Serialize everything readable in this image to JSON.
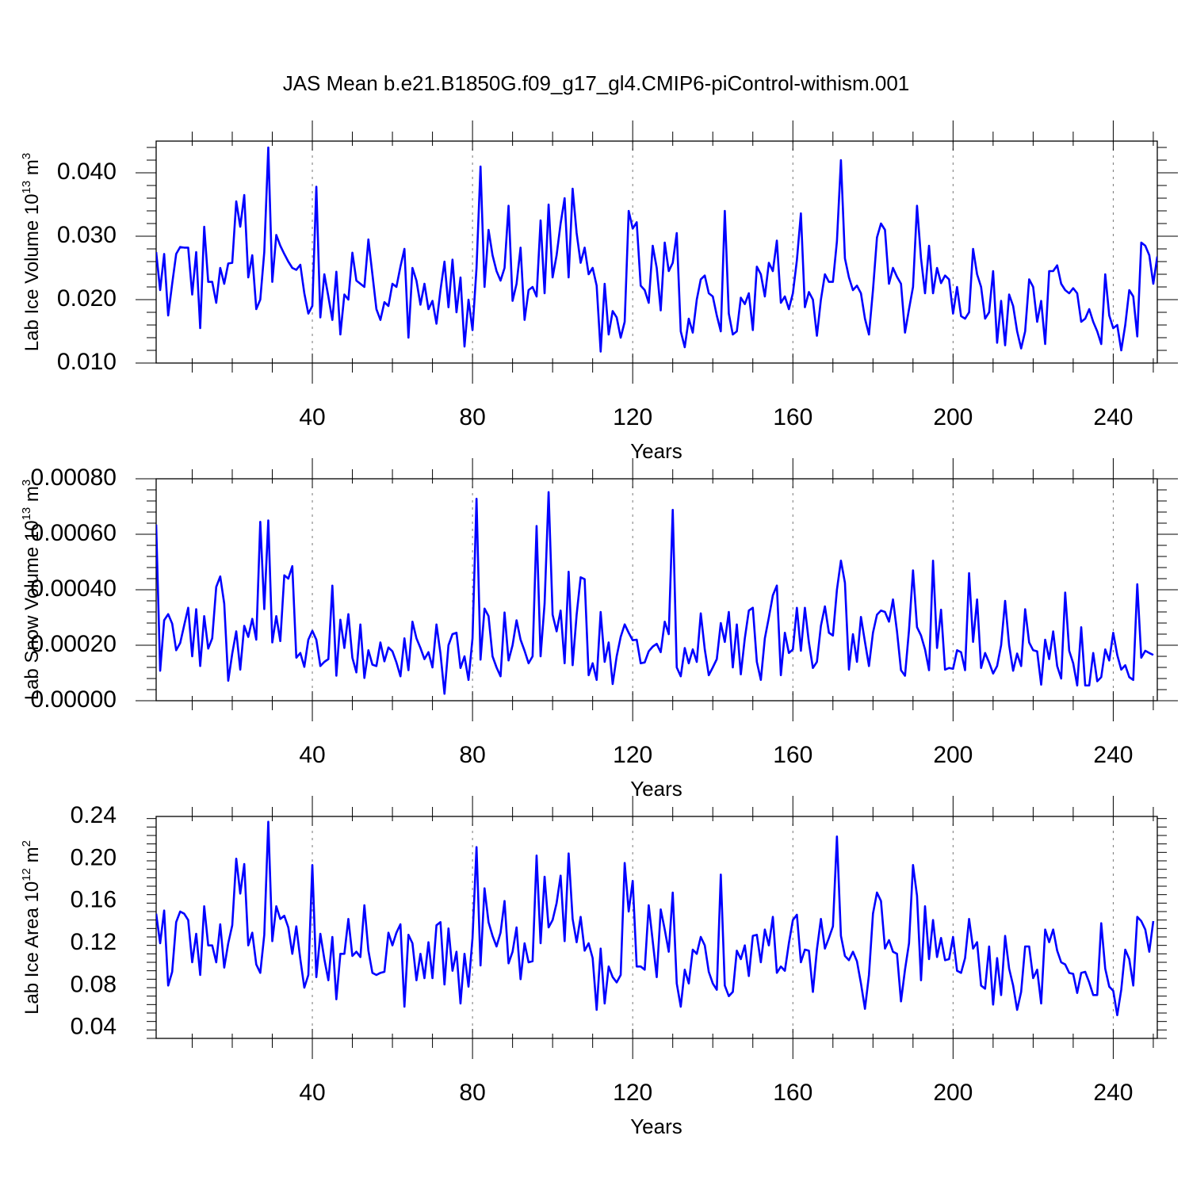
{
  "title": "JAS Mean b.e21.B1850G.f09_g17_gl4.CMIP6-piControl-withism.001",
  "colors": {
    "line": "#0000ff",
    "axis": "#000000",
    "grid": "#777777"
  },
  "chart_data": [
    {
      "type": "line",
      "ylabel": "Lab Ice Volume 10",
      "ylabel_exp": "13",
      "ylabel_unit": " m",
      "ylabel_unit_exp": "3",
      "xlabel": "Years",
      "xlim": [
        1,
        251
      ],
      "ylim": [
        0.01,
        0.045
      ],
      "yticks": [
        0.01,
        0.02,
        0.03,
        0.04
      ],
      "ytick_labels": [
        "0.010",
        "0.020",
        "0.030",
        "0.040"
      ],
      "xticks": [
        40,
        80,
        120,
        160,
        200,
        240
      ],
      "xtick_labels": [
        "40",
        "80",
        "120",
        "160",
        "200",
        "240"
      ],
      "series": [
        {
          "x_start": 1,
          "x_step": 1,
          "values": [
            0.0275,
            0.0215,
            0.0272,
            0.0175,
            0.0225,
            0.0272,
            0.0283,
            0.0282,
            0.0282,
            0.0208,
            0.0275,
            0.0155,
            0.0315,
            0.0228,
            0.0228,
            0.0195,
            0.025,
            0.0225,
            0.0257,
            0.0258,
            0.0355,
            0.0315,
            0.0365,
            0.0235,
            0.027,
            0.0185,
            0.02,
            0.0275,
            0.044,
            0.0228,
            0.0302,
            0.0285,
            0.0272,
            0.026,
            0.025,
            0.0247,
            0.0255,
            0.021,
            0.0178,
            0.019,
            0.0378,
            0.0172,
            0.024,
            0.0205,
            0.0168,
            0.0244,
            0.0145,
            0.0208,
            0.02,
            0.0274,
            0.023,
            0.0225,
            0.022,
            0.0295,
            0.024,
            0.0185,
            0.0168,
            0.0196,
            0.019,
            0.0225,
            0.022,
            0.0252,
            0.028,
            0.014,
            0.025,
            0.023,
            0.0192,
            0.0225,
            0.0185,
            0.0198,
            0.0162,
            0.0215,
            0.026,
            0.0188,
            0.0263,
            0.018,
            0.0235,
            0.0126,
            0.02,
            0.0152,
            0.025,
            0.041,
            0.022,
            0.031,
            0.027,
            0.0245,
            0.023,
            0.025,
            0.0348,
            0.0198,
            0.0225,
            0.0282,
            0.0168,
            0.0215,
            0.022,
            0.0205,
            0.0325,
            0.021,
            0.035,
            0.0235,
            0.027,
            0.032,
            0.036,
            0.0235,
            0.0375,
            0.0305,
            0.0258,
            0.0282,
            0.024,
            0.025,
            0.0222,
            0.0118,
            0.0225,
            0.0145,
            0.0182,
            0.0172,
            0.014,
            0.0165,
            0.034,
            0.0312,
            0.0322,
            0.0222,
            0.0215,
            0.0195,
            0.0285,
            0.025,
            0.0183,
            0.029,
            0.0245,
            0.0258,
            0.0305,
            0.015,
            0.0125,
            0.017,
            0.0148,
            0.02,
            0.0232,
            0.0238,
            0.021,
            0.0205,
            0.0175,
            0.015,
            0.034,
            0.0178,
            0.0145,
            0.015,
            0.0203,
            0.0193,
            0.021,
            0.0152,
            0.0252,
            0.024,
            0.0205,
            0.0258,
            0.0245,
            0.0293,
            0.0195,
            0.0205,
            0.0185,
            0.021,
            0.0262,
            0.0336,
            0.0188,
            0.0212,
            0.02,
            0.0143,
            0.02,
            0.024,
            0.0228,
            0.0228,
            0.0292,
            0.042,
            0.0265,
            0.0235,
            0.0215,
            0.0222,
            0.021,
            0.017,
            0.0145,
            0.0215,
            0.0298,
            0.032,
            0.031,
            0.0225,
            0.025,
            0.0236,
            0.0225,
            0.0148,
            0.0185,
            0.022,
            0.0348,
            0.0265,
            0.021,
            0.0285,
            0.021,
            0.025,
            0.0226,
            0.0238,
            0.0232,
            0.0178,
            0.022,
            0.0174,
            0.017,
            0.018,
            0.028,
            0.024,
            0.022,
            0.017,
            0.018,
            0.0245,
            0.0132,
            0.0198,
            0.0128,
            0.0208,
            0.019,
            0.015,
            0.0123,
            0.015,
            0.0232,
            0.022,
            0.0165,
            0.0198,
            0.013,
            0.0245,
            0.0245,
            0.0254,
            0.0225,
            0.0215,
            0.021,
            0.0218,
            0.021,
            0.0165,
            0.017,
            0.0185,
            0.0165,
            0.015,
            0.013,
            0.024,
            0.0175,
            0.0155,
            0.016,
            0.012,
            0.016,
            0.0215,
            0.0205,
            0.0142,
            0.029,
            0.0285,
            0.027,
            0.0225,
            0.0268
          ]
        }
      ]
    },
    {
      "type": "line",
      "ylabel": "Lab Snow Volume 10",
      "ylabel_exp": "13",
      "ylabel_unit": " m",
      "ylabel_unit_exp": "3",
      "xlabel": "Years",
      "xlim": [
        1,
        251
      ],
      "ylim": [
        0.0,
        0.0008
      ],
      "yticks": [
        0.0,
        0.0002,
        0.0004,
        0.0006,
        0.0008
      ],
      "ytick_labels": [
        "0.00000",
        "0.00020",
        "0.00040",
        "0.00060",
        "0.00080"
      ],
      "xticks": [
        40,
        80,
        120,
        160,
        200,
        240
      ],
      "xtick_labels": [
        "40",
        "80",
        "120",
        "160",
        "200",
        "240"
      ],
      "series": [
        {
          "x_start": 1,
          "x_step": 1,
          "values": [
            0.000635,
            0.000108,
            0.00029,
            0.000312,
            0.000278,
            0.000182,
            0.000208,
            0.000272,
            0.000335,
            0.00016,
            0.00033,
            0.000125,
            0.000305,
            0.000188,
            0.000225,
            0.00041,
            0.000448,
            0.00035,
            7.2e-05,
            0.00017,
            0.00025,
            0.000112,
            0.00027,
            0.00023,
            0.000295,
            0.00022,
            0.000645,
            0.00033,
            0.00065,
            0.00021,
            0.000305,
            0.000215,
            0.000452,
            0.00044,
            0.000485,
            0.000155,
            0.000172,
            0.000122,
            0.00022,
            0.000252,
            0.00022,
            0.000125,
            0.00014,
            0.00015,
            0.000415,
            9e-05,
            0.000292,
            0.00019,
            0.000312,
            0.000155,
            0.000102,
            0.000275,
            8.2e-05,
            0.000182,
            0.00013,
            0.000125,
            0.00021,
            0.000142,
            0.000192,
            0.000178,
            0.000138,
            8.8e-05,
            0.000225,
            0.00011,
            0.000285,
            0.000225,
            0.00019,
            0.00015,
            0.000175,
            0.00012,
            0.000275,
            0.00017,
            2.5e-05,
            0.0002,
            0.00024,
            0.000245,
            0.000118,
            0.00016,
            7.5e-05,
            0.000225,
            0.000728,
            0.000148,
            0.000332,
            0.000305,
            0.00016,
            0.00012,
            8.8e-05,
            0.000318,
            0.000145,
            0.0002,
            0.00029,
            0.00022,
            0.00018,
            0.000135,
            0.00016,
            0.00063,
            0.00016,
            0.00035,
            0.000752,
            0.00031,
            0.00025,
            0.000325,
            0.000135,
            0.000465,
            0.000128,
            0.00031,
            0.000445,
            0.000438,
            9.2e-05,
            0.000135,
            7.5e-05,
            0.00032,
            0.00014,
            0.00021,
            6e-05,
            0.00016,
            0.00023,
            0.000275,
            0.000245,
            0.000218,
            0.00022,
            0.000135,
            0.000138,
            0.000178,
            0.000195,
            0.000205,
            0.000175,
            0.000285,
            0.00024,
            0.000688,
            0.00012,
            8.8e-05,
            0.00019,
            0.000135,
            0.000185,
            0.00014,
            0.000315,
            0.000185,
            9.2e-05,
            0.00012,
            0.00015,
            0.00028,
            0.000212,
            0.00032,
            0.00012,
            0.000275,
            9.5e-05,
            0.000225,
            0.000325,
            0.000335,
            0.00014,
            7.5e-05,
            0.000225,
            0.0003,
            0.00038,
            0.000415,
            9.2e-05,
            0.000245,
            0.000172,
            0.000185,
            0.000335,
            0.00018,
            0.000335,
            0.00021,
            0.000118,
            0.00014,
            0.00027,
            0.00034,
            0.000245,
            0.000235,
            0.0004,
            0.000505,
            0.000425,
            0.000112,
            0.00024,
            0.00014,
            0.000302,
            0.000212,
            0.000125,
            0.000245,
            0.00031,
            0.000325,
            0.00032,
            0.000285,
            0.000365,
            0.00025,
            0.00011,
            9e-05,
            0.000255,
            0.00047,
            0.000265,
            0.000235,
            0.000185,
            0.00011,
            0.000505,
            0.00019,
            0.000328,
            0.000112,
            0.000118,
            0.000115,
            0.000182,
            0.000175,
            0.00011,
            0.00046,
            0.000212,
            0.000365,
            0.000118,
            0.000172,
            0.000138,
            9.8e-05,
            0.000125,
            0.0002,
            0.00036,
            0.0002,
            0.000108,
            0.00017,
            0.000125,
            0.00033,
            0.00021,
            0.000182,
            0.000178,
            5.8e-05,
            0.00022,
            0.00015,
            0.00025,
            0.000125,
            8e-05,
            0.00039,
            0.00018,
            0.000135,
            5.5e-05,
            0.000265,
            5.5e-05,
            5.5e-05,
            0.000172,
            7e-05,
            8.5e-05,
            0.000185,
            0.000145,
            0.000245,
            0.000165,
            0.000112,
            0.000128,
            8.5e-05,
            7.5e-05,
            0.00042,
            0.000155,
            0.00018,
            0.000172,
            0.000165
          ]
        }
      ]
    },
    {
      "type": "line",
      "ylabel": "Lab Ice Area 10",
      "ylabel_exp": "12",
      "ylabel_unit": " m",
      "ylabel_unit_exp": "2",
      "xlabel": "Years",
      "xlim": [
        1,
        251
      ],
      "ylim": [
        0.03,
        0.24
      ],
      "yticks": [
        0.04,
        0.08,
        0.12,
        0.16,
        0.2,
        0.24
      ],
      "ytick_labels": [
        "0.04",
        "0.08",
        "0.12",
        "0.16",
        "0.20",
        "0.24"
      ],
      "xticks": [
        40,
        80,
        120,
        160,
        200,
        240
      ],
      "xtick_labels": [
        "40",
        "80",
        "120",
        "160",
        "200",
        "240"
      ],
      "series": [
        {
          "x_start": 1,
          "x_step": 1,
          "values": [
            0.148,
            0.12,
            0.151,
            0.08,
            0.093,
            0.14,
            0.15,
            0.148,
            0.142,
            0.102,
            0.129,
            0.09,
            0.155,
            0.118,
            0.118,
            0.102,
            0.138,
            0.097,
            0.12,
            0.137,
            0.2,
            0.167,
            0.195,
            0.118,
            0.13,
            0.1,
            0.092,
            0.128,
            0.235,
            0.122,
            0.155,
            0.143,
            0.146,
            0.135,
            0.11,
            0.136,
            0.105,
            0.078,
            0.09,
            0.194,
            0.088,
            0.129,
            0.105,
            0.085,
            0.126,
            0.067,
            0.11,
            0.11,
            0.143,
            0.108,
            0.112,
            0.107,
            0.156,
            0.113,
            0.092,
            0.09,
            0.092,
            0.093,
            0.13,
            0.118,
            0.13,
            0.138,
            0.06,
            0.128,
            0.12,
            0.085,
            0.11,
            0.087,
            0.121,
            0.087,
            0.137,
            0.14,
            0.081,
            0.134,
            0.094,
            0.112,
            0.063,
            0.11,
            0.079,
            0.125,
            0.211,
            0.099,
            0.172,
            0.14,
            0.127,
            0.117,
            0.13,
            0.16,
            0.101,
            0.112,
            0.135,
            0.086,
            0.12,
            0.102,
            0.103,
            0.203,
            0.12,
            0.183,
            0.135,
            0.142,
            0.158,
            0.184,
            0.122,
            0.205,
            0.143,
            0.121,
            0.145,
            0.113,
            0.12,
            0.106,
            0.057,
            0.115,
            0.063,
            0.098,
            0.088,
            0.083,
            0.09,
            0.196,
            0.15,
            0.179,
            0.098,
            0.098,
            0.095,
            0.156,
            0.122,
            0.088,
            0.152,
            0.133,
            0.112,
            0.168,
            0.082,
            0.06,
            0.095,
            0.082,
            0.114,
            0.11,
            0.126,
            0.118,
            0.093,
            0.082,
            0.076,
            0.185,
            0.08,
            0.07,
            0.074,
            0.113,
            0.105,
            0.118,
            0.089,
            0.127,
            0.128,
            0.102,
            0.133,
            0.118,
            0.145,
            0.092,
            0.098,
            0.094,
            0.12,
            0.142,
            0.147,
            0.102,
            0.114,
            0.113,
            0.074,
            0.114,
            0.143,
            0.115,
            0.125,
            0.136,
            0.221,
            0.127,
            0.108,
            0.104,
            0.112,
            0.103,
            0.082,
            0.058,
            0.09,
            0.148,
            0.168,
            0.16,
            0.115,
            0.123,
            0.112,
            0.11,
            0.065,
            0.095,
            0.12,
            0.194,
            0.165,
            0.085,
            0.155,
            0.105,
            0.142,
            0.107,
            0.125,
            0.104,
            0.105,
            0.126,
            0.094,
            0.092,
            0.106,
            0.143,
            0.115,
            0.121,
            0.08,
            0.077,
            0.117,
            0.062,
            0.106,
            0.071,
            0.127,
            0.096,
            0.08,
            0.057,
            0.074,
            0.117,
            0.117,
            0.087,
            0.095,
            0.063,
            0.133,
            0.121,
            0.133,
            0.113,
            0.102,
            0.1,
            0.092,
            0.091,
            0.073,
            0.092,
            0.093,
            0.083,
            0.071,
            0.071,
            0.139,
            0.096,
            0.079,
            0.075,
            0.052,
            0.076,
            0.114,
            0.105,
            0.08,
            0.145,
            0.141,
            0.133,
            0.112,
            0.141
          ]
        }
      ]
    }
  ]
}
